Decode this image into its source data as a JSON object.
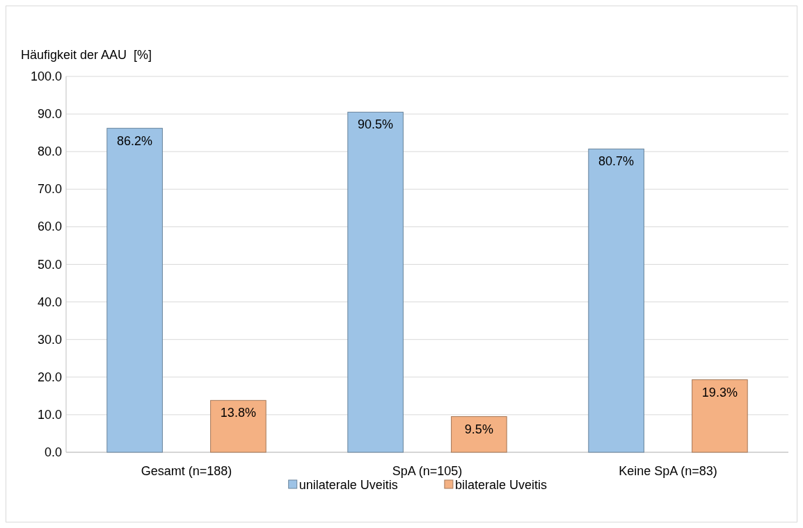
{
  "chart_data": {
    "type": "bar",
    "ylabel": "Häufigkeit der AAU  [%]",
    "categories": [
      "Gesamt (n=188)",
      "SpA (n=105)",
      "Keine SpA (n=83)"
    ],
    "series": [
      {
        "name": "unilaterale Uveitis",
        "color": "#9dc3e6",
        "values": [
          86.2,
          90.5,
          80.7
        ],
        "value_labels": [
          "86.2%",
          "90.5%",
          "80.7%"
        ]
      },
      {
        "name": "bilaterale Uveitis",
        "color": "#f4b183",
        "values": [
          13.8,
          9.5,
          19.3
        ],
        "value_labels": [
          "13.8%",
          "9.5%",
          "19.3%"
        ]
      }
    ],
    "ylim": [
      0,
      100
    ],
    "yticks": [
      {
        "value": 0,
        "label": "0.0"
      },
      {
        "value": 10,
        "label": "10.0"
      },
      {
        "value": 20,
        "label": "20.0"
      },
      {
        "value": 30,
        "label": "30.0"
      },
      {
        "value": 40,
        "label": "40.0"
      },
      {
        "value": 50,
        "label": "50.0"
      },
      {
        "value": 60,
        "label": "60.0"
      },
      {
        "value": 70,
        "label": "70.0"
      },
      {
        "value": 80,
        "label": "80.0"
      },
      {
        "value": 90,
        "label": "90.0"
      },
      {
        "value": 100,
        "label": "100.0"
      }
    ],
    "grid": "y",
    "legend": "bottom"
  }
}
